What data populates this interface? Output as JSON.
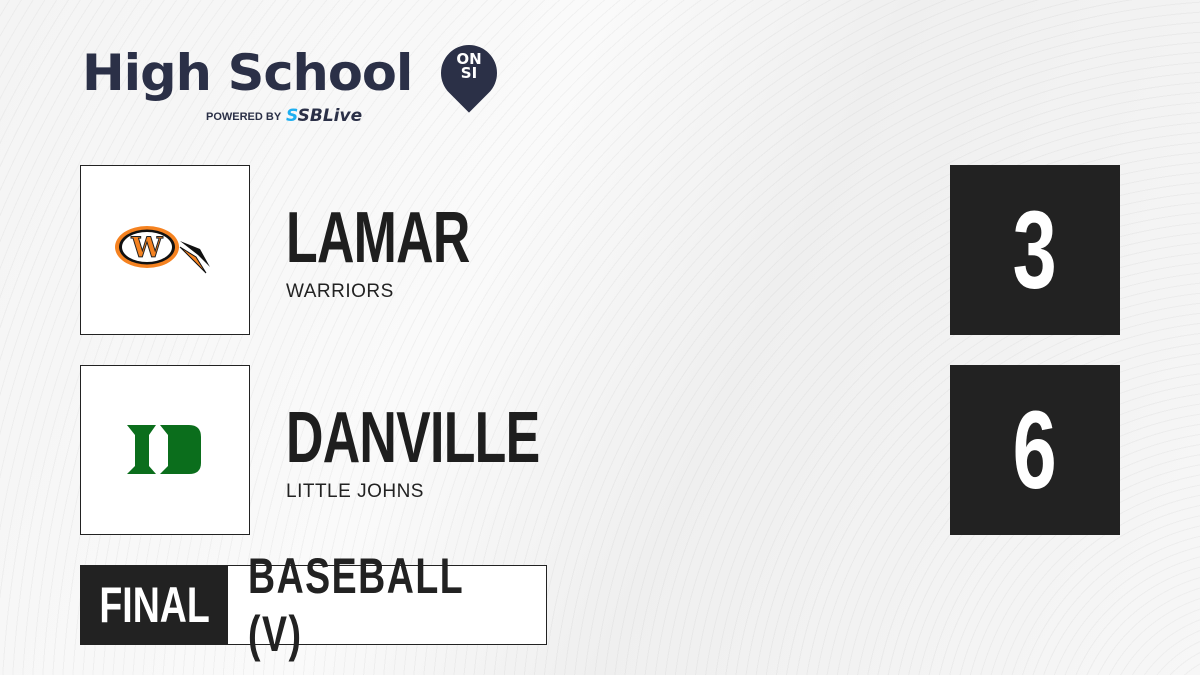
{
  "brand": {
    "title": "High School",
    "badge_top": "ON",
    "badge_bottom": "SI",
    "powered_by": "POWERED BY",
    "partner_prefix": "S",
    "partner": "SBLive"
  },
  "teams": [
    {
      "name": "LAMAR",
      "mascot": "WARRIORS",
      "score": "3",
      "logo_letter": "W",
      "logo_color": "#f58220"
    },
    {
      "name": "DANVILLE",
      "mascot": "LITTLE JOHNS",
      "score": "6",
      "logo_letter": "D",
      "logo_color": "#0b6e1c"
    }
  ],
  "status": "FINAL",
  "sport": "BASEBALL (V)"
}
